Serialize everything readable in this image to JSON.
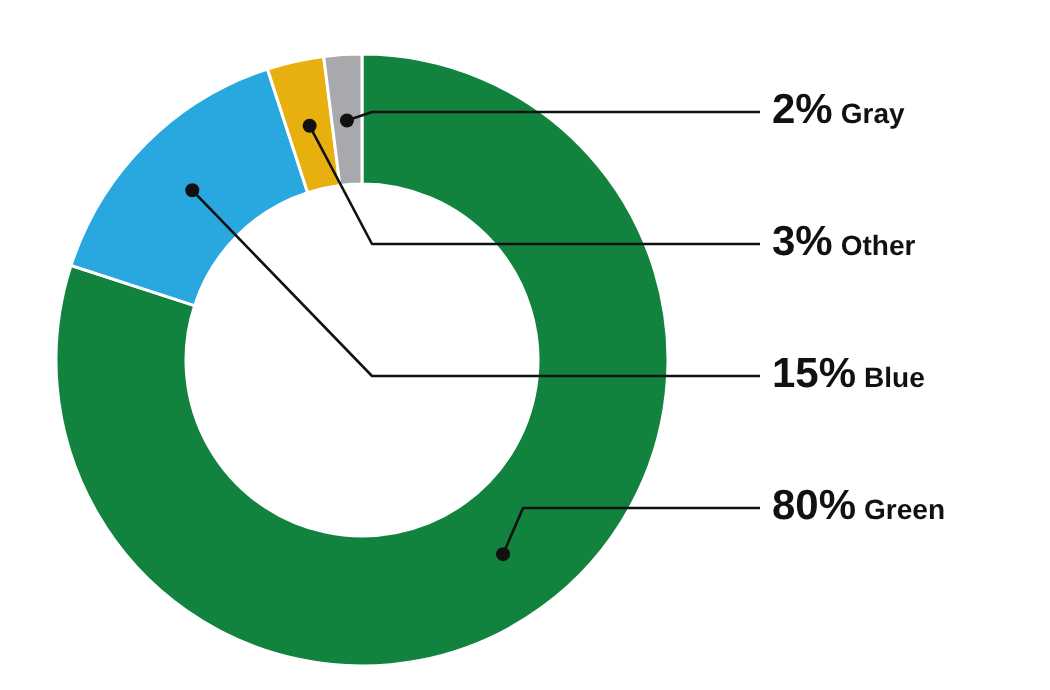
{
  "chart_data": {
    "type": "donut",
    "categories": [
      "Green",
      "Blue",
      "Other",
      "Gray"
    ],
    "values": [
      80,
      15,
      3,
      2
    ],
    "colors": [
      "#12833f",
      "#29a8e0",
      "#e8b00f",
      "#a7a9ac"
    ],
    "value_labels": [
      "80%",
      "15%",
      "3%",
      "2%"
    ]
  }
}
